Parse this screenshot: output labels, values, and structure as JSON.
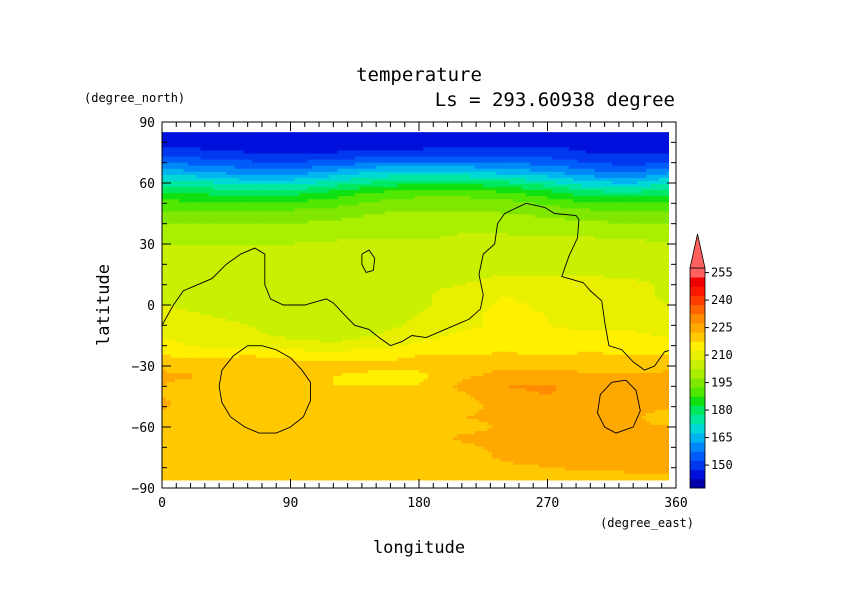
{
  "chart_data": {
    "type": "heatmap",
    "title": "temperature",
    "subtitle": "Ls = 293.60938 degree",
    "xlabel": "longitude",
    "ylabel": "latitude",
    "x_unit": "(degree_east)",
    "y_unit": "(degree_north)",
    "xlim": [
      0,
      360
    ],
    "ylim": [
      -90,
      90
    ],
    "x_ticks": [
      0,
      90,
      180,
      270,
      360
    ],
    "y_ticks": [
      90,
      60,
      30,
      0,
      -30,
      -60,
      -90
    ],
    "colorbar": {
      "levels": [
        140,
        145,
        150,
        155,
        160,
        165,
        170,
        175,
        180,
        185,
        190,
        195,
        200,
        205,
        210,
        215,
        220,
        225,
        230,
        235,
        240,
        245,
        250,
        255,
        260
      ],
      "tick_labels": [
        150,
        165,
        180,
        195,
        210,
        225,
        240,
        255
      ],
      "colors": [
        "#0000a8",
        "#0010dc",
        "#0038f0",
        "#005cf8",
        "#0088f8",
        "#00b4f0",
        "#00d8d8",
        "#00e8a0",
        "#00e860",
        "#10e010",
        "#50e800",
        "#80e800",
        "#a8f000",
        "#c8f000",
        "#e8f000",
        "#fff000",
        "#ffc800",
        "#ffa800",
        "#ff8c00",
        "#ff6400",
        "#ff3c00",
        "#ff1800",
        "#f00000",
        "#ff6060"
      ],
      "extend": "max"
    },
    "lat": [
      85,
      80,
      75,
      70,
      65,
      60,
      55,
      50,
      45,
      40,
      35,
      30,
      25,
      20,
      15,
      10,
      5,
      0,
      -5,
      -10,
      -15,
      -20,
      -25,
      -30,
      -35,
      -40,
      -45,
      -50,
      -55,
      -60,
      -65,
      -70,
      -75,
      -80,
      -85
    ],
    "lon": [
      0,
      30,
      60,
      90,
      120,
      150,
      180,
      210,
      240,
      270,
      300,
      330,
      357
    ],
    "values": [
      [
        146,
        146,
        146,
        146,
        146,
        146,
        146,
        146,
        146,
        146,
        146,
        146,
        146
      ],
      [
        148,
        148,
        148,
        148,
        148,
        148,
        148,
        148,
        148,
        148,
        148,
        148,
        148
      ],
      [
        152,
        151,
        150,
        150,
        150,
        151,
        151,
        152,
        152,
        152,
        150,
        149,
        150
      ],
      [
        160,
        158,
        156,
        155,
        157,
        160,
        161,
        161,
        160,
        158,
        155,
        153,
        156
      ],
      [
        168,
        166,
        163,
        163,
        167,
        171,
        172,
        171,
        169,
        166,
        162,
        160,
        165
      ],
      [
        178,
        176,
        173,
        173,
        177,
        181,
        184,
        184,
        181,
        177,
        171,
        170,
        175
      ],
      [
        186,
        184,
        183,
        183,
        187,
        191,
        193,
        193,
        191,
        187,
        182,
        181,
        184
      ],
      [
        192,
        191,
        190,
        191,
        193,
        196,
        198,
        198,
        197,
        194,
        191,
        190,
        191
      ],
      [
        196,
        196,
        196,
        197,
        198,
        200,
        201,
        201,
        200,
        199,
        197,
        196,
        196
      ],
      [
        200,
        200,
        200,
        200,
        201,
        202,
        203,
        203,
        202,
        202,
        201,
        200,
        200
      ],
      [
        203,
        203,
        203,
        203,
        203,
        204,
        204,
        205,
        205,
        204,
        204,
        204,
        203
      ],
      [
        205,
        205,
        205,
        205,
        206,
        206,
        206,
        206,
        207,
        207,
        207,
        206,
        205
      ],
      [
        207,
        207,
        208,
        208,
        208,
        208,
        208,
        208,
        208,
        208,
        208,
        207,
        207
      ],
      [
        208,
        208,
        209,
        209,
        209,
        209,
        209,
        209,
        209,
        209,
        209,
        209,
        208
      ],
      [
        209,
        208,
        209,
        208,
        209,
        209,
        209,
        208,
        210,
        210,
        210,
        209,
        209
      ],
      [
        209,
        209,
        208,
        208,
        208,
        208,
        209,
        210,
        212,
        212,
        211,
        211,
        209
      ],
      [
        209,
        208,
        208,
        207,
        207,
        208,
        209,
        212,
        215,
        213,
        211,
        211,
        209
      ],
      [
        210,
        209,
        208,
        207,
        207,
        207,
        209,
        213,
        216,
        214,
        212,
        212,
        210
      ],
      [
        211,
        210,
        209,
        207,
        207,
        207,
        210,
        214,
        216,
        215,
        213,
        213,
        211
      ],
      [
        212,
        211,
        210,
        208,
        207,
        208,
        211,
        214,
        216,
        215,
        214,
        214,
        212
      ],
      [
        214,
        212,
        211,
        209,
        208,
        210,
        213,
        216,
        217,
        216,
        216,
        216,
        214
      ],
      [
        217,
        214,
        214,
        212,
        211,
        213,
        216,
        218,
        218,
        218,
        218,
        218,
        217
      ],
      [
        220,
        219,
        220,
        219,
        219,
        219,
        220,
        220,
        221,
        220,
        221,
        220,
        220
      ],
      [
        224,
        223,
        224,
        222,
        221,
        221,
        221,
        222,
        224,
        224,
        223,
        223,
        224
      ],
      [
        226,
        225,
        223,
        220,
        220,
        219,
        219,
        224,
        227,
        227,
        226,
        226,
        226
      ],
      [
        225,
        222,
        221,
        220,
        220,
        220,
        220,
        226,
        230,
        231,
        227,
        226,
        225
      ],
      [
        225,
        222,
        221,
        221,
        221,
        221,
        221,
        224,
        228,
        230,
        226,
        226,
        225
      ],
      [
        226,
        222,
        221,
        221,
        221,
        221,
        221,
        223,
        227,
        227,
        226,
        226,
        226
      ],
      [
        222,
        222,
        221,
        221,
        221,
        221,
        221,
        225,
        226,
        226,
        226,
        226,
        222
      ],
      [
        224,
        222,
        221,
        221,
        221,
        221,
        221,
        223,
        226,
        226,
        226,
        226,
        225
      ],
      [
        222,
        221,
        221,
        221,
        221,
        221,
        222,
        226,
        226,
        226,
        226,
        226,
        226
      ],
      [
        221,
        221,
        221,
        221,
        221,
        221,
        221,
        224,
        226,
        226,
        226,
        226,
        226
      ],
      [
        221,
        221,
        221,
        221,
        221,
        221,
        221,
        222,
        226,
        226,
        226,
        226,
        226
      ],
      [
        221,
        221,
        221,
        221,
        221,
        221,
        221,
        221,
        224,
        225,
        226,
        226,
        226
      ],
      [
        221,
        221,
        221,
        221,
        221,
        221,
        221,
        221,
        221,
        222,
        223,
        224,
        224
      ]
    ],
    "contours": [
      [
        [
          0,
          -10
        ],
        [
          8,
          0
        ],
        [
          15,
          7
        ],
        [
          25,
          10
        ],
        [
          35,
          13
        ],
        [
          45,
          20
        ],
        [
          55,
          25
        ],
        [
          65,
          28
        ],
        [
          72,
          25
        ],
        [
          72,
          10
        ],
        [
          76,
          3
        ],
        [
          85,
          0
        ],
        [
          100,
          0
        ],
        [
          105,
          1
        ],
        [
          110,
          2
        ],
        [
          115,
          3
        ],
        [
          120,
          1
        ],
        [
          128,
          -5
        ],
        [
          135,
          -10
        ],
        [
          145,
          -12
        ],
        [
          152,
          -16
        ],
        [
          160,
          -20
        ],
        [
          168,
          -18
        ],
        [
          175,
          -15
        ],
        [
          185,
          -16
        ],
        [
          195,
          -13
        ],
        [
          205,
          -10
        ],
        [
          215,
          -7
        ],
        [
          223,
          -2
        ],
        [
          225,
          5
        ],
        [
          222,
          15
        ],
        [
          225,
          25
        ],
        [
          233,
          30
        ],
        [
          235,
          40
        ],
        [
          240,
          45
        ],
        [
          255,
          50
        ],
        [
          268,
          48
        ],
        [
          275,
          45
        ],
        [
          290,
          44
        ],
        [
          292,
          42
        ],
        [
          291,
          33
        ],
        [
          285,
          24
        ],
        [
          280,
          14
        ],
        [
          285,
          13
        ],
        [
          295,
          11
        ],
        [
          300,
          7
        ],
        [
          308,
          2
        ],
        [
          310,
          -8
        ],
        [
          313,
          -20
        ],
        [
          322,
          -22
        ],
        [
          330,
          -28
        ],
        [
          338,
          -32
        ],
        [
          345,
          -30
        ],
        [
          352,
          -23
        ],
        [
          357,
          -22
        ]
      ],
      [
        [
          140,
          25
        ],
        [
          145,
          27
        ],
        [
          149,
          23
        ],
        [
          148,
          17
        ],
        [
          143,
          16
        ],
        [
          140,
          20
        ],
        [
          140,
          25
        ]
      ],
      [
        [
          70,
          -20
        ],
        [
          80,
          -22
        ],
        [
          90,
          -26
        ],
        [
          98,
          -32
        ],
        [
          104,
          -38
        ],
        [
          104,
          -47
        ],
        [
          99,
          -55
        ],
        [
          90,
          -60
        ],
        [
          80,
          -63
        ],
        [
          68,
          -63
        ],
        [
          58,
          -60
        ],
        [
          48,
          -55
        ],
        [
          42,
          -48
        ],
        [
          40,
          -40
        ],
        [
          42,
          -32
        ],
        [
          50,
          -25
        ],
        [
          60,
          -20
        ],
        [
          70,
          -20
        ]
      ],
      [
        [
          325,
          -37
        ],
        [
          332,
          -42
        ],
        [
          335,
          -52
        ],
        [
          330,
          -60
        ],
        [
          318,
          -63
        ],
        [
          310,
          -60
        ],
        [
          305,
          -53
        ],
        [
          307,
          -44
        ],
        [
          315,
          -38
        ],
        [
          325,
          -37
        ]
      ]
    ]
  }
}
